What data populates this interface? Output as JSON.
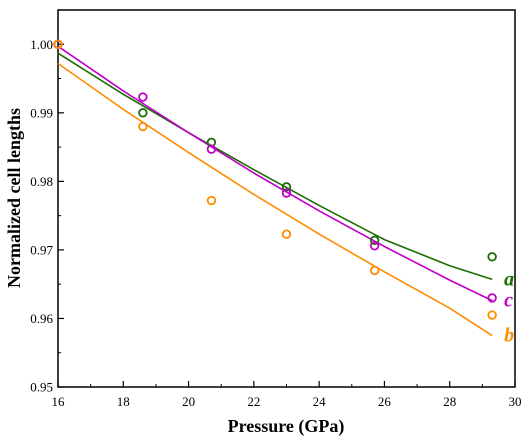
{
  "chart_data": {
    "type": "scatter",
    "xlabel": "Pressure (GPa)",
    "ylabel": "Normalized cell lengths",
    "xlim": [
      16,
      30
    ],
    "ylim": [
      0.95,
      1.005
    ],
    "x_ticks": [
      "16",
      "18",
      "20",
      "22",
      "24",
      "26",
      "28",
      "30"
    ],
    "y_ticks": [
      "0.95",
      "0.96",
      "0.97",
      "0.98",
      "0.99",
      "1.00"
    ],
    "grid": false,
    "series": [
      {
        "name": "a",
        "color": "#1a6e00",
        "x": [
          16.0,
          18.6,
          20.7,
          23.0,
          25.7,
          29.3
        ],
        "y": [
          1.0,
          0.99,
          0.9857,
          0.9792,
          0.9714,
          0.969
        ],
        "fit_x": [
          16.0,
          18.0,
          20.0,
          22.0,
          24.0,
          26.0,
          28.0,
          29.3
        ],
        "fit_y": [
          0.9987,
          0.9927,
          0.9871,
          0.9817,
          0.9765,
          0.9715,
          0.9677,
          0.9657
        ]
      },
      {
        "name": "c",
        "color": "#c000c8",
        "x": [
          16.0,
          18.6,
          20.7,
          23.0,
          25.7,
          29.3
        ],
        "y": [
          1.0,
          0.9923,
          0.9847,
          0.9783,
          0.9706,
          0.963
        ],
        "fit_x": [
          16.0,
          18.0,
          20.0,
          22.0,
          24.0,
          26.0,
          28.0,
          29.3
        ],
        "fit_y": [
          0.9997,
          0.9932,
          0.9871,
          0.9812,
          0.9757,
          0.9705,
          0.9656,
          0.9626
        ]
      },
      {
        "name": "b",
        "color": "#ff8c00",
        "x": [
          16.0,
          18.6,
          20.7,
          23.0,
          25.7,
          29.3
        ],
        "y": [
          1.0,
          0.988,
          0.9772,
          0.9723,
          0.967,
          0.9605
        ],
        "fit_x": [
          16.0,
          18.0,
          20.0,
          22.0,
          24.0,
          26.0,
          28.0,
          29.3
        ],
        "fit_y": [
          0.9972,
          0.9905,
          0.9842,
          0.9781,
          0.9723,
          0.9668,
          0.9615,
          0.9575
        ]
      }
    ]
  }
}
